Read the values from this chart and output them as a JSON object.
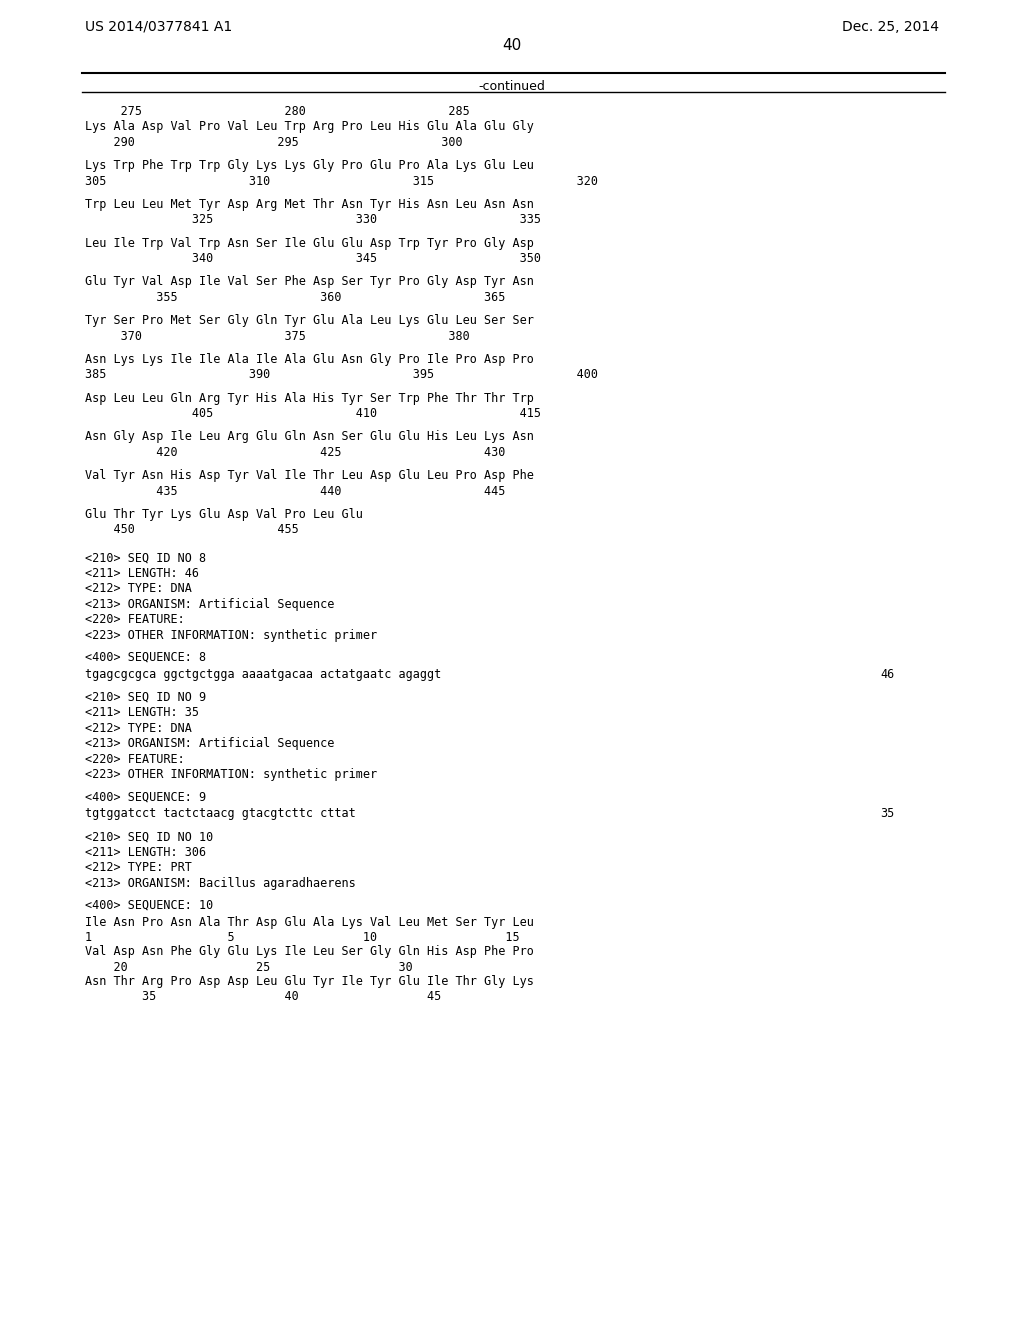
{
  "header_left": "US 2014/0377841 A1",
  "header_right": "Dec. 25, 2014",
  "page_number": "40",
  "continued_label": "-continued",
  "background_color": "#ffffff",
  "text_color": "#000000",
  "content_lines": [
    "     275                    280                    285",
    "Lys Ala Asp Val Pro Val Leu Trp Arg Pro Leu His Glu Ala Glu Gly",
    "    290                    295                    300",
    "",
    "Lys Trp Phe Trp Trp Gly Lys Lys Gly Pro Glu Pro Ala Lys Glu Leu",
    "305                    310                    315                    320",
    "",
    "Trp Leu Leu Met Tyr Asp Arg Met Thr Asn Tyr His Asn Leu Asn Asn",
    "               325                    330                    335",
    "",
    "Leu Ile Trp Val Trp Asn Ser Ile Glu Glu Asp Trp Tyr Pro Gly Asp",
    "               340                    345                    350",
    "",
    "Glu Tyr Val Asp Ile Val Ser Phe Asp Ser Tyr Pro Gly Asp Tyr Asn",
    "          355                    360                    365",
    "",
    "Tyr Ser Pro Met Ser Gly Gln Tyr Glu Ala Leu Lys Glu Leu Ser Ser",
    "     370                    375                    380",
    "",
    "Asn Lys Lys Ile Ile Ala Ile Ala Glu Asn Gly Pro Ile Pro Asp Pro",
    "385                    390                    395                    400",
    "",
    "Asp Leu Leu Gln Arg Tyr His Ala His Tyr Ser Trp Phe Thr Thr Trp",
    "               405                    410                    415",
    "",
    "Asn Gly Asp Ile Leu Arg Glu Gln Asn Ser Glu Glu His Leu Lys Asn",
    "          420                    425                    430",
    "",
    "Val Tyr Asn His Asp Tyr Val Ile Thr Leu Asp Glu Leu Pro Asp Phe",
    "          435                    440                    445",
    "",
    "Glu Thr Tyr Lys Glu Asp Val Pro Leu Glu",
    "    450                    455"
  ],
  "seq8_block": [
    "<210> SEQ ID NO 8",
    "<211> LENGTH: 46",
    "<212> TYPE: DNA",
    "<213> ORGANISM: Artificial Sequence",
    "<220> FEATURE:",
    "<223> OTHER INFORMATION: synthetic primer"
  ],
  "seq8_label": "<400> SEQUENCE: 8",
  "seq8_seq": "tgagcgcgca ggctgctgga aaaatgacaa actatgaatc agaggt",
  "seq8_num": "46",
  "seq9_block": [
    "<210> SEQ ID NO 9",
    "<211> LENGTH: 35",
    "<212> TYPE: DNA",
    "<213> ORGANISM: Artificial Sequence",
    "<220> FEATURE:",
    "<223> OTHER INFORMATION: synthetic primer"
  ],
  "seq9_label": "<400> SEQUENCE: 9",
  "seq9_seq": "tgtggatcct tactctaacg gtacgtcttc cttat",
  "seq9_num": "35",
  "seq10_block": [
    "<210> SEQ ID NO 10",
    "<211> LENGTH: 306",
    "<212> TYPE: PRT",
    "<213> ORGANISM: Bacillus agaradhaerens"
  ],
  "seq10_label": "<400> SEQUENCE: 10",
  "seq10_seqs": [
    "Ile Asn Pro Asn Ala Thr Asp Glu Ala Lys Val Leu Met Ser Tyr Leu",
    "1                   5                  10                  15",
    "Val Asp Asn Phe Gly Glu Lys Ile Leu Ser Gly Gln His Asp Phe Pro",
    "    20                  25                  30",
    "Asn Thr Arg Pro Asp Asp Leu Glu Tyr Ile Tyr Glu Ile Thr Gly Lys",
    "        35                  40                  45"
  ]
}
